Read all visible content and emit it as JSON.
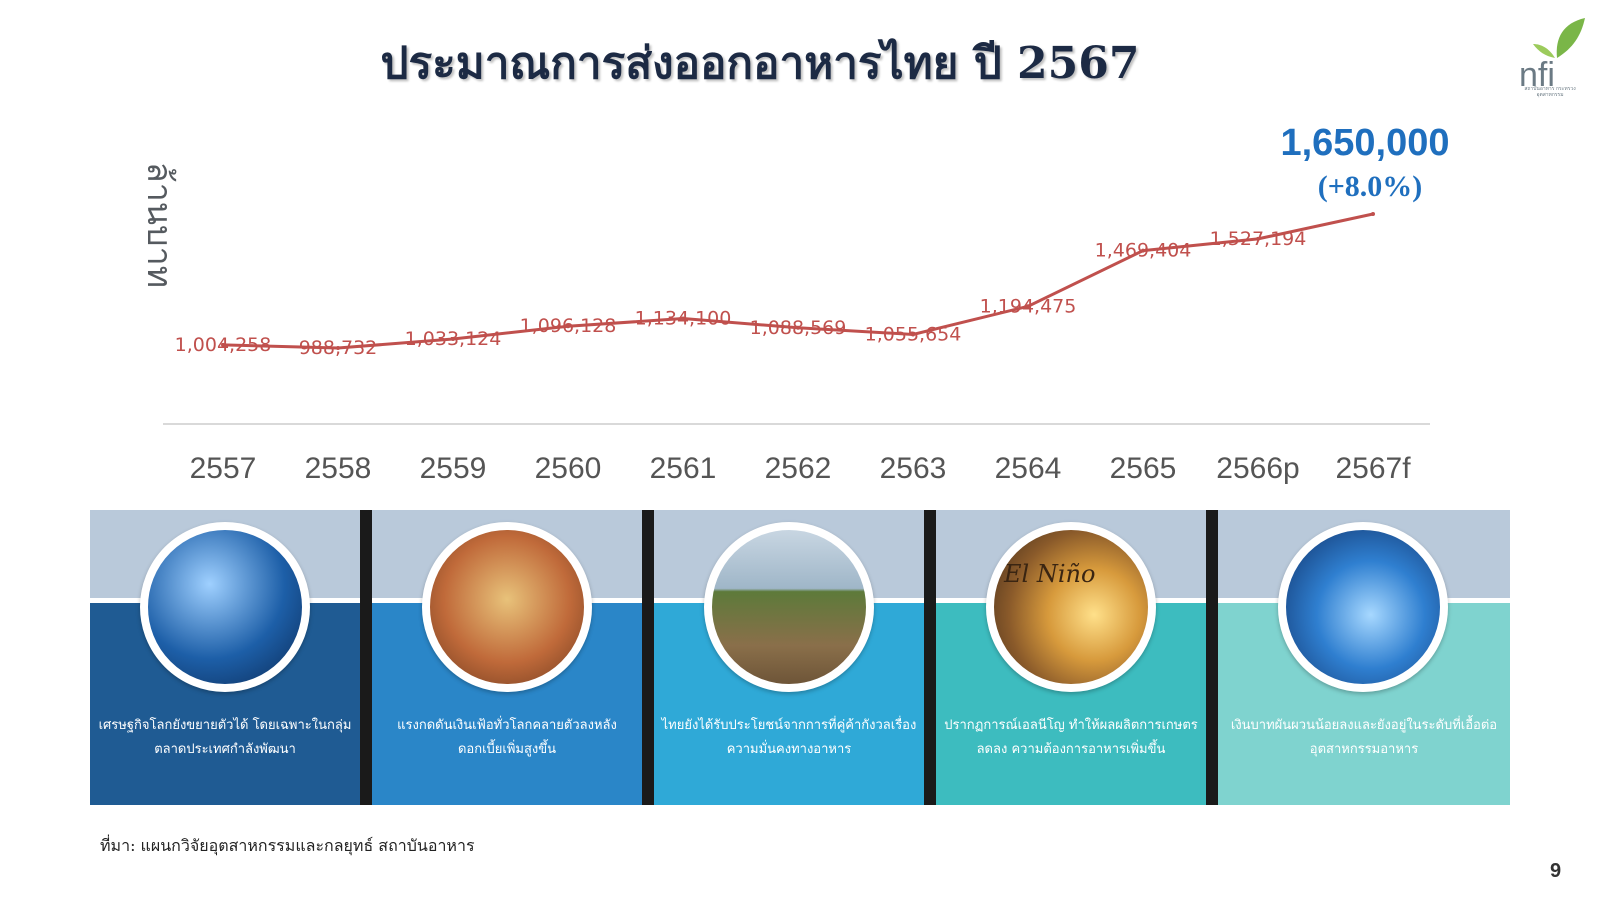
{
  "page": {
    "title": "ประมาณการส่งออกอาหารไทย ปี 2567",
    "source": "ที่มา: แผนกวิจัยอุตสาหกรรมและกลยุทธ์  สถาบันอาหาร",
    "page_number": "9",
    "logo_text": "nfi",
    "logo_subtext": "สถาบันอาหาร กระทรวงอุตสาหกรรม"
  },
  "callout": {
    "value": "1,650,000",
    "growth": "(+8.0%)"
  },
  "chart_data": {
    "type": "line",
    "ylabel": "ล้านบาท",
    "categories": [
      "2557",
      "2558",
      "2559",
      "2560",
      "2561",
      "2562",
      "2563",
      "2564",
      "2565",
      "2566p",
      "2567f"
    ],
    "values": [
      1004258,
      988732,
      1033124,
      1096128,
      1134100,
      1088569,
      1055654,
      1194475,
      1469404,
      1527194,
      1650000
    ],
    "data_labels": [
      "1,004,258",
      "988,732",
      "1,033,124",
      "1,096,128",
      "1,134,100",
      "1,088,569",
      "1,055,654",
      "1,194,475",
      "1,469,404",
      "1,527,194",
      ""
    ],
    "grid": false,
    "legend": "none",
    "line_color": "#c0504d",
    "label_color": "#c0504d"
  },
  "panels": [
    {
      "text": "เศรษฐกิจโลกยังขยายตัวได้ โดยเฉพาะในกลุ่มตลาดประเทศกำลังพัฒนา",
      "color": "#1f5b93",
      "icon": "economy-chart-image"
    },
    {
      "text": "แรงกดดันเงินเฟ้อทั่วโลกคลายตัวลงหลังดอกเบี้ยเพิ่มสูงขึ้น",
      "color": "#2a86c8",
      "icon": "inflation-coins-image"
    },
    {
      "text": "ไทยยังได้รับประโยชน์จากการที่คู่ค้ากังวลเรื่องความมั่นคงทางอาหาร",
      "color": "#2fa9d7",
      "icon": "farmer-field-image"
    },
    {
      "text": "ปรากฏการณ์เอลนีโญ ทำให้ผลผลิตการเกษตรลดลง ความต้องการอาหารเพิ่มขึ้น",
      "color": "#3dbcbf",
      "icon": "el-nino-image",
      "overlay": "El Niño"
    },
    {
      "text": "เงินบาทผันผวนน้อยลงและยังอยู่ในระดับที่เอื้อต่ออุตสาหกรรมอาหาร",
      "color": "#7fd3cf",
      "icon": "currency-coins-image"
    }
  ]
}
